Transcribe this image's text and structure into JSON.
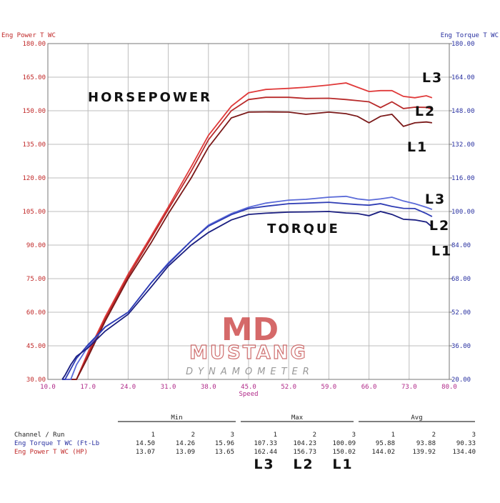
{
  "chart_data": {
    "type": "line",
    "y_label": "Eng Power T WC",
    "y2_label": "Eng Torque T WC",
    "x_label": "Speed",
    "annotations": [
      "HORSEPOWER",
      "TORQUE"
    ],
    "x": [
      12.5,
      13,
      14,
      15,
      17,
      20,
      24,
      28,
      31,
      35,
      38,
      42,
      45,
      48,
      52,
      55,
      59,
      62,
      64,
      66,
      68,
      70,
      72,
      74,
      76,
      77
    ],
    "xlim": [
      10,
      80
    ],
    "xticks": [
      {
        "value": 10,
        "label": "10.0"
      },
      {
        "value": 17,
        "label": "17.0"
      },
      {
        "value": 24,
        "label": "24.0"
      },
      {
        "value": 31,
        "label": "31.0"
      },
      {
        "value": 38,
        "label": "38.0"
      },
      {
        "value": 45,
        "label": "45.0"
      },
      {
        "value": 52,
        "label": "52.0"
      },
      {
        "value": 59,
        "label": "59.0"
      },
      {
        "value": 66,
        "label": "66.0"
      },
      {
        "value": 73,
        "label": "73.0"
      },
      {
        "value": 80,
        "label": "80.0"
      }
    ],
    "ylim": [
      30,
      180
    ],
    "yticks": [
      {
        "value": 30,
        "label": "30.00"
      },
      {
        "value": 45,
        "label": "45.00"
      },
      {
        "value": 60,
        "label": "60.00"
      },
      {
        "value": 75,
        "label": "75.00"
      },
      {
        "value": 90,
        "label": "90.00"
      },
      {
        "value": 105,
        "label": "105.00"
      },
      {
        "value": 120,
        "label": "120.00"
      },
      {
        "value": 135,
        "label": "135.00"
      },
      {
        "value": 150,
        "label": "150.00"
      },
      {
        "value": 165,
        "label": "165.00"
      },
      {
        "value": 180,
        "label": "180.00"
      }
    ],
    "y2lim": [
      20,
      180
    ],
    "y2ticks": [
      {
        "value": 20,
        "label": "20.00"
      },
      {
        "value": 36,
        "label": "36.00"
      },
      {
        "value": 52,
        "label": "52.00"
      },
      {
        "value": 68,
        "label": "68.00"
      },
      {
        "value": 84,
        "label": "84.00"
      },
      {
        "value": 100,
        "label": "100.00"
      },
      {
        "value": 116,
        "label": "116.00"
      },
      {
        "value": 132,
        "label": "132.00"
      },
      {
        "value": 148,
        "label": "148.00"
      },
      {
        "value": 164,
        "label": "164.00"
      },
      {
        "value": 180,
        "label": "180.00"
      }
    ],
    "grid": true,
    "series": [
      {
        "name": "L3",
        "color": "#e03a3a",
        "values": [
          30,
          30,
          30,
          30,
          42,
          58,
          77,
          94,
          107,
          125,
          139,
          152,
          158,
          159.5,
          160,
          160.5,
          161.5,
          162.4,
          160.5,
          158.6,
          159,
          159,
          156.4,
          155.8,
          156.7,
          155.8
        ]
      },
      {
        "name": "L2",
        "color": "#b82a2a",
        "values": [
          30,
          30,
          30,
          30,
          41,
          57,
          76,
          93,
          106,
          123,
          137,
          150,
          155,
          156,
          156,
          155.5,
          155.6,
          155,
          154.5,
          154,
          151.4,
          154,
          151,
          151.6,
          151.5,
          150.7
        ]
      },
      {
        "name": "L1",
        "color": "#7a1818",
        "values": [
          30,
          30,
          30,
          30,
          40,
          56,
          75,
          91,
          104,
          120,
          133.7,
          146.8,
          149.4,
          149.5,
          149.4,
          148.4,
          149.4,
          148.7,
          147.5,
          144.6,
          147.5,
          148.4,
          143,
          144.6,
          145,
          144.6
        ]
      },
      {
        "name": "L3",
        "color": "#5a6ad8",
        "axis": "y2",
        "values": [
          20,
          20,
          20,
          27,
          35.7,
          45,
          52,
          66,
          75.5,
          86,
          93.5,
          99,
          102,
          104,
          105.4,
          105.8,
          106.8,
          107.2,
          106,
          105.4,
          106,
          106.8,
          105,
          103.7,
          102,
          101
        ]
      },
      {
        "name": "L2",
        "color": "#2e3cb4",
        "axis": "y2",
        "values": [
          20,
          20,
          25,
          30,
          36.5,
          45,
          52,
          66,
          75,
          86,
          93,
          98.5,
          101.4,
          102.5,
          103.7,
          104,
          104.4,
          103.7,
          103.3,
          103,
          103.7,
          102.4,
          101.5,
          101.4,
          99,
          97.6
        ]
      },
      {
        "name": "L1",
        "color": "#1a1e80",
        "axis": "y2",
        "values": [
          20,
          22,
          27,
          31,
          35,
          43,
          51,
          64,
          74,
          84,
          90,
          96,
          98.6,
          99.2,
          99.7,
          99.8,
          100,
          99.3,
          99,
          98,
          100,
          98.6,
          96.3,
          96,
          95,
          92.6
        ]
      }
    ]
  },
  "logo": {
    "mark": "MD",
    "name": "MUSTANG",
    "sub": "DYNAMOMETER"
  },
  "table": {
    "groups": [
      "Min",
      "Max",
      "Avg"
    ],
    "header": "Channel / Run",
    "runs": [
      "1",
      "2",
      "3"
    ],
    "rows": [
      {
        "channel": "Eng Torque T WC (Ft-Lb",
        "values": [
          "14.50",
          "14.26",
          "15.96",
          "107.33",
          "104.23",
          "100.09",
          "95.88",
          "93.88",
          "90.33"
        ]
      },
      {
        "channel": "Eng Power T WC (HP)",
        "values": [
          "13.07",
          "13.09",
          "13.65",
          "162.44",
          "156.73",
          "150.02",
          "144.02",
          "139.92",
          "134.40"
        ]
      }
    ],
    "run_labels": [
      "L3",
      "L2",
      "L1"
    ]
  }
}
